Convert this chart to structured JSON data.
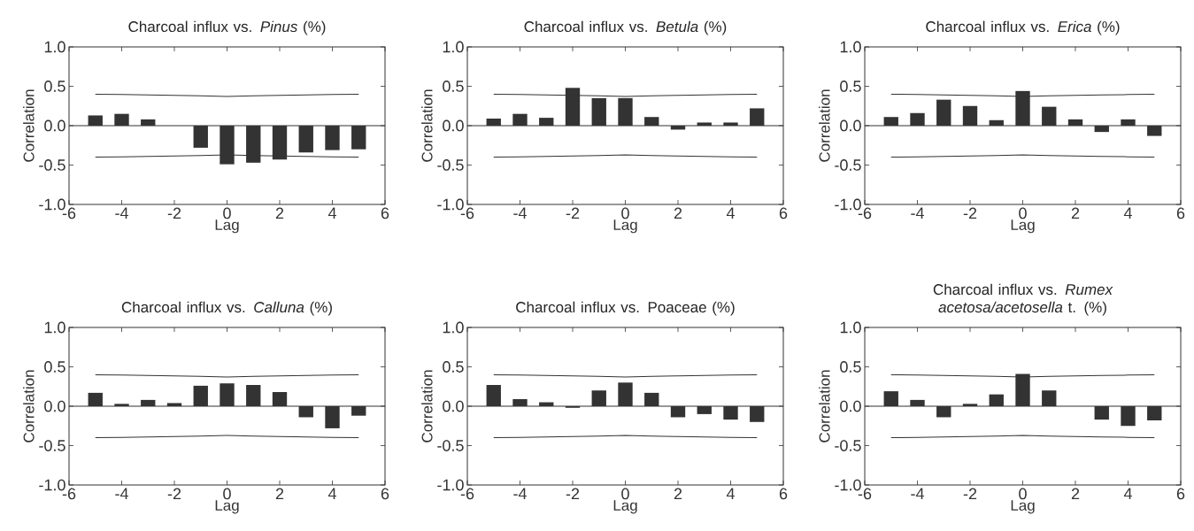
{
  "chart_data": [
    {
      "type": "bar",
      "title": "Charcoal influx vs. *Pinus* (%)",
      "xlabel": "Lag",
      "ylabel": "Correlation",
      "x": [
        -5,
        -4,
        -3,
        -2,
        -1,
        0,
        1,
        2,
        3,
        4,
        5
      ],
      "xlim": [
        -6,
        6
      ],
      "xticks": [
        -6,
        -4,
        -2,
        0,
        2,
        4,
        6
      ],
      "ylim": [
        -1,
        1
      ],
      "yticks": [
        {
          "value": -1,
          "label": "-1.0"
        },
        {
          "value": -0.5,
          "label": "-0.5"
        },
        {
          "value": 0,
          "label": "0.0"
        },
        {
          "value": 0.5,
          "label": "0.5"
        },
        {
          "value": 1,
          "label": "1.0"
        }
      ],
      "ref_lines": [
        {
          "axis": "y",
          "value": 0,
          "color": "#333333"
        }
      ],
      "series": [
        {
          "color": "#333333",
          "values": [
            0.13,
            0.15,
            0.08,
            0.0,
            -0.28,
            -0.49,
            -0.47,
            -0.43,
            -0.34,
            -0.31,
            -0.3
          ]
        },
        {
          "type": "line",
          "color": "#333333",
          "values": [
            0.4,
            0.395,
            0.39,
            0.385,
            0.38,
            0.37,
            0.38,
            0.385,
            0.39,
            0.395,
            0.4
          ]
        },
        {
          "type": "line",
          "color": "#333333",
          "values": [
            -0.4,
            -0.395,
            -0.39,
            -0.385,
            -0.38,
            -0.37,
            -0.38,
            -0.385,
            -0.39,
            -0.395,
            -0.4
          ]
        }
      ]
    },
    {
      "type": "bar",
      "title": "Charcoal influx vs. *Betula* (%)",
      "xlabel": "Lag",
      "ylabel": "Correlation",
      "x": [
        -5,
        -4,
        -3,
        -2,
        -1,
        0,
        1,
        2,
        3,
        4,
        5
      ],
      "xlim": [
        -6,
        6
      ],
      "xticks": [
        -6,
        -4,
        -2,
        0,
        2,
        4,
        6
      ],
      "ylim": [
        -1,
        1
      ],
      "yticks": [
        {
          "value": -1,
          "label": "-1.0"
        },
        {
          "value": -0.5,
          "label": "-0.5"
        },
        {
          "value": 0,
          "label": "0.0"
        },
        {
          "value": 0.5,
          "label": "0.5"
        },
        {
          "value": 1,
          "label": "1.0"
        }
      ],
      "ref_lines": [
        {
          "axis": "y",
          "value": 0,
          "color": "#333333"
        }
      ],
      "series": [
        {
          "color": "#333333",
          "values": [
            0.09,
            0.15,
            0.1,
            0.48,
            0.35,
            0.35,
            0.11,
            -0.05,
            0.04,
            0.04,
            0.22
          ]
        },
        {
          "type": "line",
          "color": "#333333",
          "values": [
            0.4,
            0.395,
            0.39,
            0.385,
            0.38,
            0.37,
            0.38,
            0.385,
            0.39,
            0.395,
            0.4
          ]
        },
        {
          "type": "line",
          "color": "#333333",
          "values": [
            -0.4,
            -0.395,
            -0.39,
            -0.385,
            -0.38,
            -0.37,
            -0.38,
            -0.385,
            -0.39,
            -0.395,
            -0.4
          ]
        }
      ]
    },
    {
      "type": "bar",
      "title": "Charcoal influx vs. *Erica* (%)",
      "xlabel": "Lag",
      "ylabel": "Correlation",
      "x": [
        -5,
        -4,
        -3,
        -2,
        -1,
        0,
        1,
        2,
        3,
        4,
        5
      ],
      "xlim": [
        -6,
        6
      ],
      "xticks": [
        -6,
        -4,
        -2,
        0,
        2,
        4,
        6
      ],
      "ylim": [
        -1,
        1
      ],
      "yticks": [
        {
          "value": -1,
          "label": "-1.0"
        },
        {
          "value": -0.5,
          "label": "-0.5"
        },
        {
          "value": 0,
          "label": "0.0"
        },
        {
          "value": 0.5,
          "label": "0.5"
        },
        {
          "value": 1,
          "label": "1.0"
        }
      ],
      "ref_lines": [
        {
          "axis": "y",
          "value": 0,
          "color": "#333333"
        }
      ],
      "series": [
        {
          "color": "#333333",
          "values": [
            0.11,
            0.16,
            0.33,
            0.25,
            0.07,
            0.44,
            0.24,
            0.08,
            -0.08,
            0.08,
            -0.13
          ]
        },
        {
          "type": "line",
          "color": "#333333",
          "values": [
            0.4,
            0.395,
            0.39,
            0.385,
            0.38,
            0.37,
            0.38,
            0.385,
            0.39,
            0.395,
            0.4
          ]
        },
        {
          "type": "line",
          "color": "#333333",
          "values": [
            -0.4,
            -0.395,
            -0.39,
            -0.385,
            -0.38,
            -0.37,
            -0.38,
            -0.385,
            -0.39,
            -0.395,
            -0.4
          ]
        }
      ]
    },
    {
      "type": "bar",
      "title": "Charcoal influx vs. *Calluna* (%)",
      "xlabel": "Lag",
      "ylabel": "Correlation",
      "x": [
        -5,
        -4,
        -3,
        -2,
        -1,
        0,
        1,
        2,
        3,
        4,
        5
      ],
      "xlim": [
        -6,
        6
      ],
      "xticks": [
        -6,
        -4,
        -2,
        0,
        2,
        4,
        6
      ],
      "ylim": [
        -1,
        1
      ],
      "yticks": [
        {
          "value": -1,
          "label": "-1.0"
        },
        {
          "value": -0.5,
          "label": "-0.5"
        },
        {
          "value": 0,
          "label": "0.0"
        },
        {
          "value": 0.5,
          "label": "0.5"
        },
        {
          "value": 1,
          "label": "1.0"
        }
      ],
      "ref_lines": [
        {
          "axis": "y",
          "value": 0,
          "color": "#333333"
        }
      ],
      "series": [
        {
          "color": "#333333",
          "values": [
            0.17,
            0.03,
            0.08,
            0.04,
            0.26,
            0.29,
            0.27,
            0.18,
            -0.14,
            -0.28,
            -0.12
          ]
        },
        {
          "type": "line",
          "color": "#333333",
          "values": [
            0.4,
            0.395,
            0.39,
            0.385,
            0.38,
            0.37,
            0.38,
            0.385,
            0.39,
            0.395,
            0.4
          ]
        },
        {
          "type": "line",
          "color": "#333333",
          "values": [
            -0.4,
            -0.395,
            -0.39,
            -0.385,
            -0.38,
            -0.37,
            -0.38,
            -0.385,
            -0.39,
            -0.395,
            -0.4
          ]
        }
      ]
    },
    {
      "type": "bar",
      "title": "Charcoal influx vs. Poaceae (%)",
      "xlabel": "Lag",
      "ylabel": "Correlation",
      "x": [
        -5,
        -4,
        -3,
        -2,
        -1,
        0,
        1,
        2,
        3,
        4,
        5
      ],
      "xlim": [
        -6,
        6
      ],
      "xticks": [
        -6,
        -4,
        -2,
        0,
        2,
        4,
        6
      ],
      "ylim": [
        -1,
        1
      ],
      "yticks": [
        {
          "value": -1,
          "label": "-1.0"
        },
        {
          "value": -0.5,
          "label": "-0.5"
        },
        {
          "value": 0,
          "label": "0.0"
        },
        {
          "value": 0.5,
          "label": "0.5"
        },
        {
          "value": 1,
          "label": "1.0"
        }
      ],
      "ref_lines": [
        {
          "axis": "y",
          "value": 0,
          "color": "#333333"
        }
      ],
      "series": [
        {
          "color": "#333333",
          "values": [
            0.27,
            0.09,
            0.05,
            -0.02,
            0.2,
            0.3,
            0.17,
            -0.14,
            -0.1,
            -0.17,
            -0.2
          ]
        },
        {
          "type": "line",
          "color": "#333333",
          "values": [
            0.4,
            0.395,
            0.39,
            0.385,
            0.38,
            0.37,
            0.38,
            0.385,
            0.39,
            0.395,
            0.4
          ]
        },
        {
          "type": "line",
          "color": "#333333",
          "values": [
            -0.4,
            -0.395,
            -0.39,
            -0.385,
            -0.38,
            -0.37,
            -0.38,
            -0.385,
            -0.39,
            -0.395,
            -0.4
          ]
        }
      ]
    },
    {
      "type": "bar",
      "title": "Charcoal influx vs. *Rumex acetosa/acetosella* t. (%)",
      "xlabel": "Lag",
      "ylabel": "Correlation",
      "x": [
        -5,
        -4,
        -3,
        -2,
        -1,
        0,
        1,
        2,
        3,
        4,
        5
      ],
      "xlim": [
        -6,
        6
      ],
      "xticks": [
        -6,
        -4,
        -2,
        0,
        2,
        4,
        6
      ],
      "ylim": [
        -1,
        1
      ],
      "yticks": [
        {
          "value": -1,
          "label": "-1.0"
        },
        {
          "value": -0.5,
          "label": "-0.5"
        },
        {
          "value": 0,
          "label": "0.0"
        },
        {
          "value": 0.5,
          "label": "0.5"
        },
        {
          "value": 1,
          "label": "1.0"
        }
      ],
      "ref_lines": [
        {
          "axis": "y",
          "value": 0,
          "color": "#333333"
        }
      ],
      "series": [
        {
          "color": "#333333",
          "values": [
            0.19,
            0.08,
            -0.14,
            0.03,
            0.15,
            0.41,
            0.2,
            0.0,
            -0.17,
            -0.25,
            -0.18
          ]
        },
        {
          "type": "line",
          "color": "#333333",
          "values": [
            0.4,
            0.395,
            0.39,
            0.385,
            0.38,
            0.37,
            0.38,
            0.385,
            0.39,
            0.395,
            0.4
          ]
        },
        {
          "type": "line",
          "color": "#333333",
          "values": [
            -0.4,
            -0.395,
            -0.39,
            -0.385,
            -0.38,
            -0.37,
            -0.38,
            -0.385,
            -0.39,
            -0.395,
            -0.4
          ]
        }
      ]
    }
  ]
}
